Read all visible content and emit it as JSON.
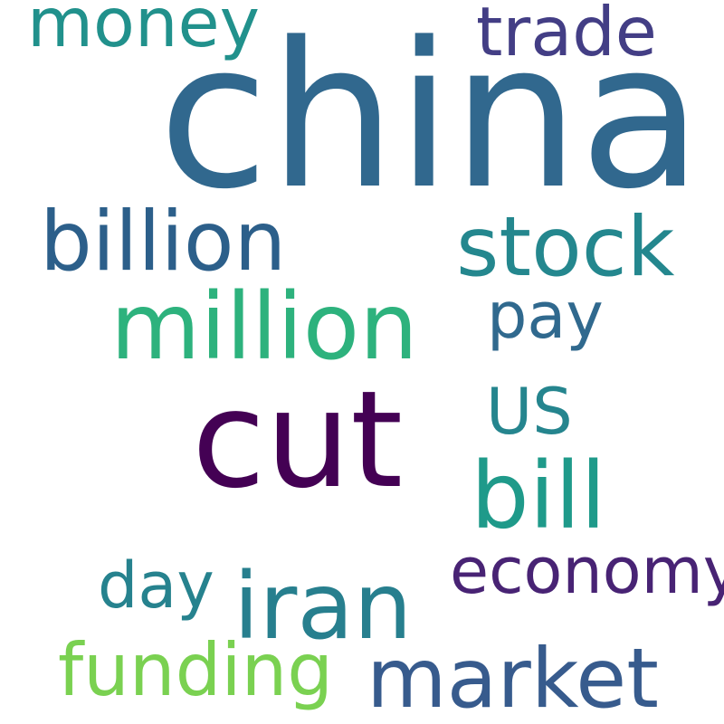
{
  "words": [
    {
      "text": "china",
      "color": "#31688e"
    },
    {
      "text": "cut",
      "color": "#440154"
    },
    {
      "text": "million",
      "color": "#2db27d"
    },
    {
      "text": "billion",
      "color": "#2c5f8a"
    },
    {
      "text": "stock",
      "color": "#24878e"
    },
    {
      "text": "bill",
      "color": "#1f9a8a"
    },
    {
      "text": "iran",
      "color": "#277f8e"
    },
    {
      "text": "market",
      "color": "#375b8d"
    },
    {
      "text": "funding",
      "color": "#7ad151"
    },
    {
      "text": "economy",
      "color": "#482374"
    },
    {
      "text": "money",
      "color": "#21918c"
    },
    {
      "text": "trade",
      "color": "#433e85"
    },
    {
      "text": "pay",
      "color": "#30698e"
    },
    {
      "text": "US",
      "color": "#25858e"
    },
    {
      "text": "day",
      "color": "#26828e"
    }
  ]
}
